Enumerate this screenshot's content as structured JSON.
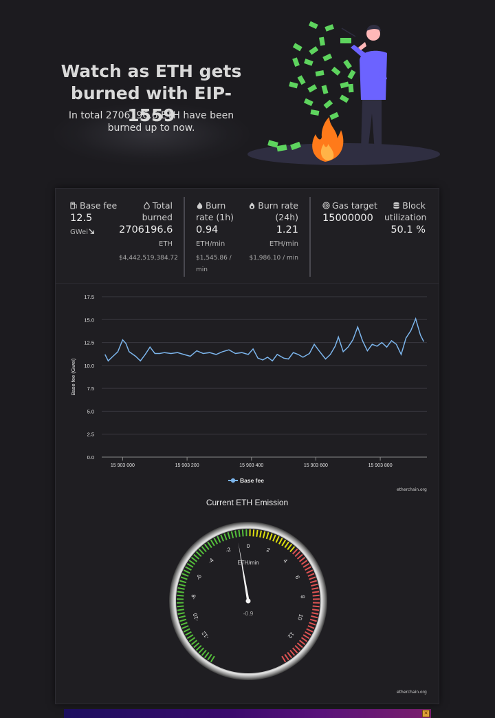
{
  "hero": {
    "title": "Watch as ETH gets burned with EIP-1559",
    "subtitle": "In total 2706196.6 ETH have been burned up to now."
  },
  "stats": {
    "base_fee": {
      "label": "Base fee",
      "value": "12.5",
      "unit": "GWei",
      "trend_icon": "arrow-down-right-icon"
    },
    "total_burned": {
      "label": "Total burned",
      "value": "2706196.6",
      "unit": "ETH",
      "usd": "$4,442,519,384.72"
    },
    "burn_rate_1h": {
      "label": "Burn rate (1h)",
      "value": "0.94",
      "unit": "ETH/min",
      "usd": "$1,545.86 / min"
    },
    "burn_rate_24h": {
      "label": "Burn rate (24h)",
      "value": "1.21",
      "unit": "ETH/min",
      "usd": "$1,986.10 / min"
    },
    "gas_target": {
      "label": "Gas target",
      "value": "15000000"
    },
    "block_util": {
      "label": "Block utilization",
      "value": "50.1 %"
    }
  },
  "chart_data": {
    "type": "line",
    "ylabel": "Base fee (Gwei)",
    "ylim": [
      0,
      17.5
    ],
    "yticks": [
      "0.0",
      "2.5",
      "5.0",
      "7.5",
      "10.0",
      "12.5",
      "15.0",
      "17.5"
    ],
    "xticks": [
      "15 903 000",
      "15 903 200",
      "15 903 400",
      "15 903 600",
      "15 903 800"
    ],
    "xtick_values": [
      15903000,
      15903200,
      15903400,
      15903600,
      15903800
    ],
    "xlim": [
      15902935,
      15903945
    ],
    "grid": true,
    "legend_position": "bottom",
    "series": [
      {
        "name": "Base fee",
        "color": "#7cb5ec",
        "x": [
          15902945,
          15902955,
          15902970,
          15902985,
          15903000,
          15903010,
          15903020,
          15903040,
          15903055,
          15903070,
          15903085,
          15903100,
          15903115,
          15903130,
          15903150,
          15903170,
          15903190,
          15903210,
          15903230,
          15903250,
          15903270,
          15903290,
          15903310,
          15903330,
          15903350,
          15903370,
          15903390,
          15903405,
          15903420,
          15903435,
          15903450,
          15903465,
          15903480,
          15903500,
          15903515,
          15903530,
          15903545,
          15903560,
          15903580,
          15903595,
          15903610,
          15903630,
          15903645,
          15903660,
          15903670,
          15903685,
          15903700,
          15903715,
          15903730,
          15903745,
          15903760,
          15903775,
          15903790,
          15903805,
          15903820,
          15903835,
          15903850,
          15903865,
          15903880,
          15903895,
          15903910,
          15903925,
          15903935
        ],
        "y": [
          11.2,
          10.5,
          11.0,
          11.5,
          12.8,
          12.4,
          11.5,
          11.0,
          10.5,
          11.2,
          12.0,
          11.3,
          11.3,
          11.4,
          11.3,
          11.4,
          11.2,
          11.0,
          11.6,
          11.3,
          11.4,
          11.2,
          11.5,
          11.7,
          11.3,
          11.4,
          11.2,
          11.8,
          10.8,
          10.6,
          10.9,
          10.5,
          11.2,
          10.8,
          10.7,
          11.4,
          11.2,
          10.9,
          11.3,
          12.3,
          11.6,
          10.7,
          11.2,
          12.1,
          13.1,
          11.5,
          12.0,
          12.8,
          14.2,
          12.7,
          11.6,
          12.3,
          12.1,
          12.5,
          12.0,
          12.7,
          12.3,
          11.2,
          13.0,
          13.8,
          15.1,
          13.3,
          12.6
        ]
      }
    ]
  },
  "gauge": {
    "title": "Current ETH Emission",
    "unit_label": "ETH/min",
    "value": -0.9,
    "value_label": "-0.9",
    "min": -14,
    "max": 14,
    "tick_labels": [
      "-12",
      "-10",
      "-8",
      "-6",
      "-4",
      "-2",
      "0",
      "2",
      "4",
      "6",
      "8",
      "10",
      "12"
    ],
    "band_colors": {
      "green": "#55bf3b",
      "yellow": "#dddf0d",
      "red": "#df5353"
    }
  },
  "credits": {
    "chart": "etherchain.org",
    "gauge": "etherchain.org"
  }
}
